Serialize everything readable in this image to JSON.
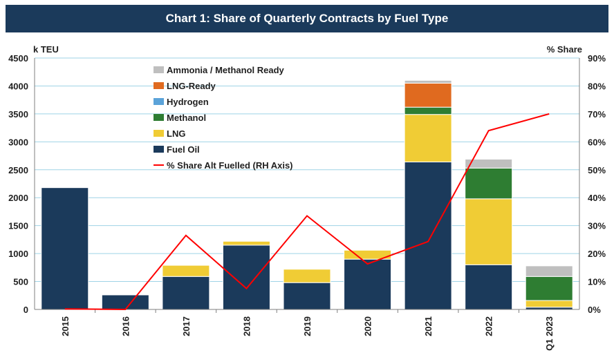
{
  "title": "Chart 1: Share of Quarterly Contracts by Fuel Type",
  "chart_data": {
    "type": "bar",
    "stacked": true,
    "categories": [
      "2015",
      "2016",
      "2017",
      "2018",
      "2019",
      "2020",
      "2021",
      "2022",
      "Q1 2023"
    ],
    "left_axis": {
      "unit_label": "k TEU",
      "ylim": [
        0,
        4500
      ],
      "ticks": [
        "0",
        "500",
        "1000",
        "1500",
        "2000",
        "2500",
        "3000",
        "3500",
        "4000",
        "4500"
      ]
    },
    "right_axis": {
      "unit_label": "% Share",
      "ylim": [
        0,
        90
      ],
      "ticks": [
        "0%",
        "10%",
        "20%",
        "30%",
        "40%",
        "50%",
        "60%",
        "70%",
        "80%",
        "90%"
      ]
    },
    "series": [
      {
        "name": "Fuel Oil",
        "color": "#1b3a5b",
        "values": [
          2180,
          260,
          590,
          1150,
          480,
          900,
          2640,
          800,
          40
        ]
      },
      {
        "name": "LNG",
        "color": "#f0cc35",
        "values": [
          0,
          0,
          200,
          70,
          240,
          160,
          850,
          1180,
          120
        ]
      },
      {
        "name": "Methanol",
        "color": "#2e7d32",
        "values": [
          0,
          0,
          0,
          0,
          0,
          0,
          130,
          550,
          430
        ]
      },
      {
        "name": "Hydrogen",
        "color": "#5ba3d9",
        "values": [
          0,
          0,
          0,
          0,
          0,
          0,
          0,
          0,
          0
        ]
      },
      {
        "name": "LNG-Ready",
        "color": "#e06a1f",
        "values": [
          0,
          0,
          0,
          0,
          0,
          0,
          430,
          0,
          0
        ]
      },
      {
        "name": "Ammonia / Methanol Ready",
        "color": "#bfbfbf",
        "values": [
          0,
          0,
          0,
          0,
          0,
          0,
          50,
          160,
          190
        ]
      }
    ],
    "line_series": {
      "name": "% Share Alt Fuelled (RH Axis)",
      "color": "#ff0000",
      "axis": "right",
      "values": [
        0.2,
        0,
        26.5,
        7.5,
        33.5,
        16.3,
        24.3,
        64,
        70
      ]
    },
    "legend_order": [
      "Ammonia / Methanol Ready",
      "LNG-Ready",
      "Hydrogen",
      "Methanol",
      "LNG",
      "Fuel Oil",
      "% Share Alt Fuelled (RH Axis)"
    ],
    "legend_position": "top-left (inside plot)",
    "grid": true
  }
}
